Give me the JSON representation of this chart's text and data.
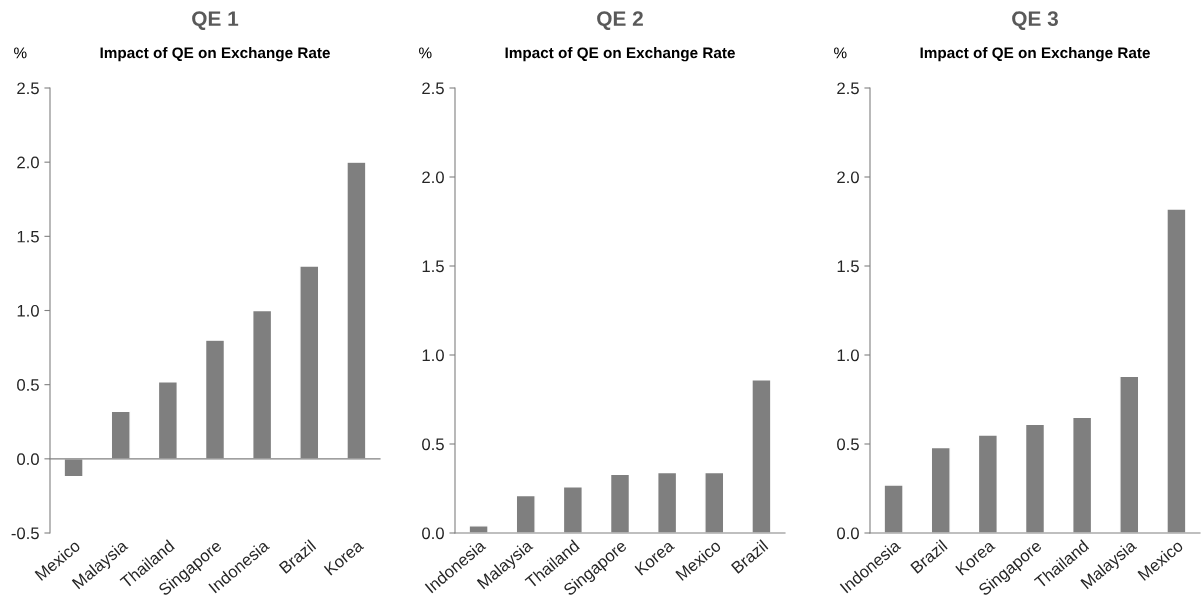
{
  "chart_data": [
    {
      "type": "bar",
      "title": "QE 1",
      "subtitle": "Impact of QE on Exchange Rate",
      "ylabel": "%",
      "categories": [
        "Mexico",
        "Malaysia",
        "Thailand",
        "Singapore",
        "Indonesia",
        "Brazil",
        "Korea"
      ],
      "values": [
        -0.12,
        0.32,
        0.52,
        0.8,
        1.0,
        1.3,
        2.0
      ],
      "color": "#7f7f7f",
      "ylim": [
        -0.5,
        2.5
      ],
      "yticks": [
        {
          "value": -0.5,
          "label": "-0.5"
        },
        {
          "value": 0,
          "label": "0.0"
        },
        {
          "value": 0.5,
          "label": "0.5"
        },
        {
          "value": 1,
          "label": "1.0"
        },
        {
          "value": 1.5,
          "label": "1.5"
        },
        {
          "value": 2,
          "label": "2.0"
        },
        {
          "value": 2.5,
          "label": "2.5"
        }
      ]
    },
    {
      "type": "bar",
      "title": "QE 2",
      "subtitle": "Impact of QE on Exchange Rate",
      "ylabel": "%",
      "categories": [
        "Indonesia",
        "Malaysia",
        "Thailand",
        "Singapore",
        "Korea",
        "Mexico",
        "Brazil"
      ],
      "values": [
        0.04,
        0.21,
        0.26,
        0.33,
        0.34,
        0.34,
        0.86
      ],
      "color": "#7f7f7f",
      "ylim": [
        0,
        2.5
      ],
      "yticks": [
        {
          "value": 0,
          "label": "0.0"
        },
        {
          "value": 0.5,
          "label": "0.5"
        },
        {
          "value": 1,
          "label": "1.0"
        },
        {
          "value": 1.5,
          "label": "1.5"
        },
        {
          "value": 2,
          "label": "2.0"
        },
        {
          "value": 2.5,
          "label": "2.5"
        }
      ]
    },
    {
      "type": "bar",
      "title": "QE 3",
      "subtitle": "Impact of QE on Exchange Rate",
      "ylabel": "%",
      "categories": [
        "Indonesia",
        "Brazil",
        "Korea",
        "Singapore",
        "Thailand",
        "Malaysia",
        "Mexico"
      ],
      "values": [
        0.27,
        0.48,
        0.55,
        0.61,
        0.65,
        0.88,
        1.82
      ],
      "color": "#7f7f7f",
      "ylim": [
        0,
        2.5
      ],
      "yticks": [
        {
          "value": 0,
          "label": "0.0"
        },
        {
          "value": 0.5,
          "label": "0.5"
        },
        {
          "value": 1,
          "label": "1.0"
        },
        {
          "value": 1.5,
          "label": "1.5"
        },
        {
          "value": 2,
          "label": "2.0"
        },
        {
          "value": 2.5,
          "label": "2.5"
        }
      ]
    }
  ]
}
